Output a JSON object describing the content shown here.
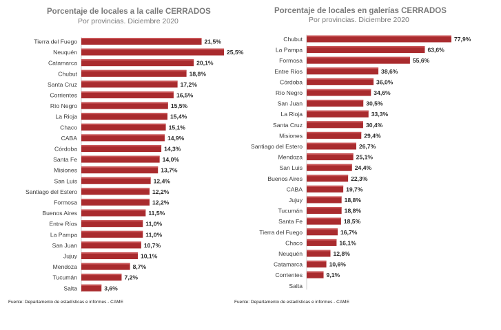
{
  "chart_data": [
    {
      "type": "bar",
      "orientation": "horizontal",
      "title": "Porcentaje de locales a la calle CERRADOS",
      "subtitle": "Por provincias. Diciembre 2020",
      "source": "Fuente: Departamento de estadísticas e informes - CAME",
      "color": "#a92b2e",
      "categories": [
        "Tierra del Fuego",
        "Neuquén",
        "Catamarca",
        "Chubut",
        "Santa Cruz",
        "Corrientes",
        "Río Negro",
        "La Rioja",
        "Chaco",
        "CABA",
        "Córdoba",
        "Santa Fe",
        "Misiones",
        "San Luis",
        "Santiago del Estero",
        "Formosa",
        "Buenos Aires",
        "Entre Ríos",
        "La Pampa",
        "San Juan",
        "Jujuy",
        "Mendoza",
        "Tucumán",
        "Salta"
      ],
      "values": [
        21.5,
        25.5,
        20.1,
        18.8,
        17.2,
        16.5,
        15.5,
        15.4,
        15.1,
        14.9,
        14.3,
        14.0,
        13.7,
        12.4,
        12.2,
        12.2,
        11.5,
        11.0,
        11.0,
        10.7,
        10.1,
        8.7,
        7.2,
        3.6
      ],
      "labels": [
        "21,5%",
        "25,5%",
        "20,1%",
        "18,8%",
        "17,2%",
        "16,5%",
        "15,5%",
        "15,4%",
        "15,1%",
        "14,9%",
        "14,3%",
        "14,0%",
        "13,7%",
        "12,4%",
        "12,2%",
        "12,2%",
        "11,5%",
        "11,0%",
        "11,0%",
        "10,7%",
        "10,1%",
        "8,7%",
        "7,2%",
        "3,6%"
      ],
      "xlim": [
        0,
        25.5
      ]
    },
    {
      "type": "bar",
      "orientation": "horizontal",
      "title": "Porcentaje de locales en galerías CERRADOS",
      "subtitle": "Por provincias. Diciembre 2020",
      "source": "Fuente: Departamento de estadísticas e informes - CAME",
      "color": "#a92b2e",
      "categories": [
        "Chubut",
        "La Pampa",
        "Formosa",
        "Entre Ríos",
        "Córdoba",
        "Río Negro",
        "San Juan",
        "La Rioja",
        "Santa Cruz",
        "Misiones",
        "Santiago del Estero",
        "Mendoza",
        "San Luis",
        "Buenos Aires",
        "CABA",
        "Jujuy",
        "Tucumán",
        "Santa Fe",
        "Tierra del Fuego",
        "Chaco",
        "Neuquén",
        "Catamarca",
        "Corrientes",
        "Salta"
      ],
      "values": [
        77.9,
        63.6,
        55.6,
        38.6,
        36.0,
        34.6,
        30.5,
        33.3,
        30.4,
        29.4,
        26.7,
        25.1,
        24.4,
        22.3,
        19.7,
        18.8,
        18.8,
        18.5,
        16.7,
        16.1,
        12.8,
        10.6,
        9.1,
        0
      ],
      "labels": [
        "77,9%",
        "63,6%",
        "55,6%",
        "38,6%",
        "36,0%",
        "34,6%",
        "30,5%",
        "33,3%",
        "30,4%",
        "29,4%",
        "26,7%",
        "25,1%",
        "24,4%",
        "22,3%",
        "19,7%",
        "18,8%",
        "18,8%",
        "18,5%",
        "16,7%",
        "16,1%",
        "12,8%",
        "10,6%",
        "9,1%",
        ""
      ],
      "xlim": [
        0,
        77.9
      ]
    }
  ]
}
